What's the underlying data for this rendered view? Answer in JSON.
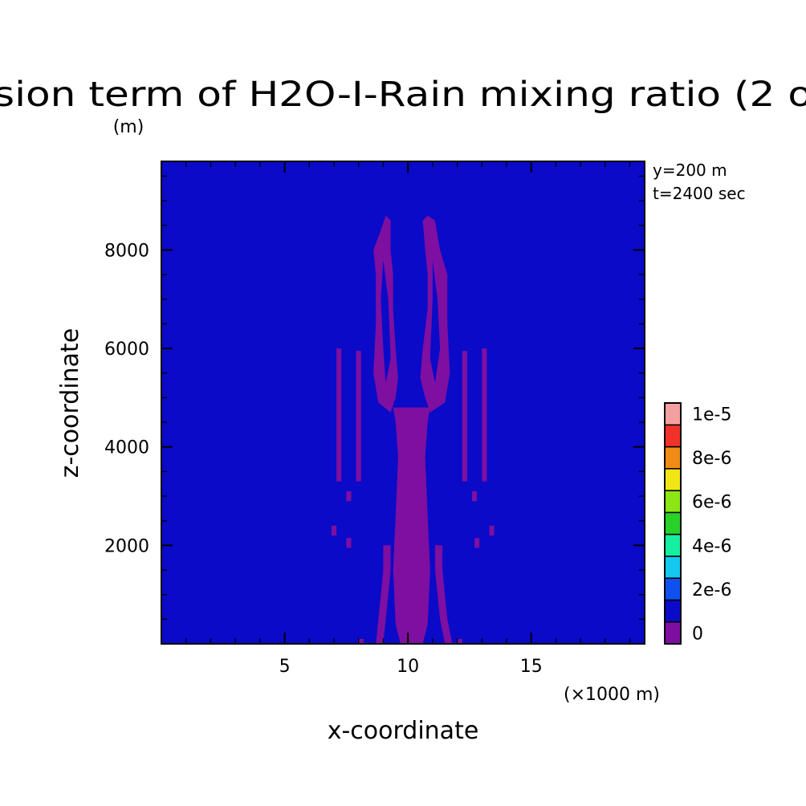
{
  "chart_data": {
    "type": "heatmap",
    "title": "sion term of H2O-I-Rain mixing ratio (2 o",
    "title_unit": "(m)",
    "xlabel": "x-coordinate",
    "ylabel": "z-coordinate",
    "x_unit": "(×1000 m)",
    "annotations": [
      "y=200 m",
      "t=2400 sec"
    ],
    "xlim": [
      0,
      19.6
    ],
    "ylim": [
      0,
      9800
    ],
    "xticks": [
      5,
      10,
      15
    ],
    "yticks": [
      2000,
      4000,
      6000,
      8000
    ],
    "grid": false,
    "colorbar": {
      "labels": [
        "0",
        "2e-6",
        "4e-6",
        "6e-6",
        "8e-6",
        "1e-5"
      ],
      "colors": [
        "#7e0fa0",
        "#0a0ac8",
        "#0f50f0",
        "#14c8f0",
        "#14f0a0",
        "#28d228",
        "#8ce614",
        "#f0e614",
        "#f08c14",
        "#f03228",
        "#f5a0a0"
      ]
    },
    "background_color": "#0a0ac8",
    "feature_color": "#7e0fa0",
    "regions": [
      {
        "name": "central-column",
        "points": [
          [
            9.7,
            0
          ],
          [
            9.5,
            400
          ],
          [
            9.4,
            1500
          ],
          [
            9.5,
            2600
          ],
          [
            9.6,
            3800
          ],
          [
            9.5,
            4500
          ],
          [
            9.4,
            4800
          ],
          [
            10.9,
            4800
          ],
          [
            10.8,
            4500
          ],
          [
            10.7,
            3800
          ],
          [
            10.8,
            2600
          ],
          [
            10.9,
            1500
          ],
          [
            10.8,
            400
          ],
          [
            10.6,
            0
          ]
        ]
      },
      {
        "name": "left-lower-branch",
        "points": [
          [
            8.7,
            0
          ],
          [
            8.8,
            500
          ],
          [
            8.9,
            1000
          ],
          [
            9.0,
            1500
          ],
          [
            9.0,
            2000
          ],
          [
            9.3,
            2000
          ],
          [
            9.3,
            1500
          ],
          [
            9.2,
            1000
          ],
          [
            9.1,
            500
          ],
          [
            9.0,
            0
          ]
        ]
      },
      {
        "name": "right-lower-branch",
        "points": [
          [
            11.5,
            0
          ],
          [
            11.3,
            500
          ],
          [
            11.2,
            1000
          ],
          [
            11.1,
            1500
          ],
          [
            11.1,
            2000
          ],
          [
            11.4,
            2000
          ],
          [
            11.4,
            1500
          ],
          [
            11.5,
            1000
          ],
          [
            11.6,
            500
          ],
          [
            11.8,
            0
          ]
        ]
      },
      {
        "name": "left-upper-ring",
        "points": [
          [
            9.1,
            8700
          ],
          [
            8.9,
            8400
          ],
          [
            8.6,
            8000
          ],
          [
            8.7,
            7500
          ],
          [
            8.7,
            6500
          ],
          [
            8.6,
            5500
          ],
          [
            8.8,
            4900
          ],
          [
            9.3,
            4700
          ],
          [
            9.5,
            5000
          ],
          [
            9.6,
            5400
          ],
          [
            9.5,
            6000
          ],
          [
            9.4,
            6800
          ],
          [
            9.4,
            7500
          ],
          [
            9.3,
            8000
          ],
          [
            9.3,
            8600
          ]
        ]
      },
      {
        "name": "right-upper-ring",
        "points": [
          [
            10.8,
            8700
          ],
          [
            11.1,
            8600
          ],
          [
            11.3,
            8000
          ],
          [
            11.6,
            7500
          ],
          [
            11.6,
            6500
          ],
          [
            11.7,
            5500
          ],
          [
            11.5,
            4900
          ],
          [
            10.9,
            4700
          ],
          [
            10.7,
            5000
          ],
          [
            10.5,
            5400
          ],
          [
            10.6,
            6000
          ],
          [
            10.8,
            6800
          ],
          [
            10.8,
            7500
          ],
          [
            10.7,
            8000
          ],
          [
            10.6,
            8600
          ]
        ]
      },
      {
        "name": "left-outer-streak",
        "points": [
          [
            7.1,
            6000
          ],
          [
            7.3,
            6000
          ],
          [
            7.3,
            3300
          ],
          [
            7.1,
            3300
          ]
        ]
      },
      {
        "name": "left-inner-streak",
        "points": [
          [
            7.9,
            5950
          ],
          [
            8.1,
            5950
          ],
          [
            8.1,
            3300
          ],
          [
            7.9,
            3300
          ]
        ]
      },
      {
        "name": "right-inner-streak",
        "points": [
          [
            12.2,
            5950
          ],
          [
            12.4,
            5950
          ],
          [
            12.4,
            3300
          ],
          [
            12.2,
            3300
          ]
        ]
      },
      {
        "name": "right-outer-streak",
        "points": [
          [
            13.0,
            6000
          ],
          [
            13.2,
            6000
          ],
          [
            13.2,
            3300
          ],
          [
            13.0,
            3300
          ]
        ]
      },
      {
        "name": "left-patch-1",
        "points": [
          [
            7.5,
            3100
          ],
          [
            7.7,
            3100
          ],
          [
            7.7,
            2900
          ],
          [
            7.5,
            2900
          ]
        ]
      },
      {
        "name": "left-patch-2",
        "points": [
          [
            6.9,
            2400
          ],
          [
            7.1,
            2400
          ],
          [
            7.1,
            2200
          ],
          [
            6.9,
            2200
          ]
        ]
      },
      {
        "name": "left-patch-3",
        "points": [
          [
            7.5,
            2150
          ],
          [
            7.7,
            2150
          ],
          [
            7.7,
            1950
          ],
          [
            7.5,
            1950
          ]
        ]
      },
      {
        "name": "right-patch-1",
        "points": [
          [
            12.6,
            3100
          ],
          [
            12.8,
            3100
          ],
          [
            12.8,
            2900
          ],
          [
            12.6,
            2900
          ]
        ]
      },
      {
        "name": "right-patch-2",
        "points": [
          [
            13.3,
            2400
          ],
          [
            13.5,
            2400
          ],
          [
            13.5,
            2200
          ],
          [
            13.3,
            2200
          ]
        ]
      },
      {
        "name": "right-patch-3",
        "points": [
          [
            12.7,
            2150
          ],
          [
            12.9,
            2150
          ],
          [
            12.9,
            1950
          ],
          [
            12.7,
            1950
          ]
        ]
      },
      {
        "name": "left-foot-patch",
        "points": [
          [
            8.0,
            100
          ],
          [
            8.2,
            100
          ],
          [
            8.2,
            0
          ],
          [
            8.0,
            0
          ]
        ]
      },
      {
        "name": "right-foot-patch",
        "points": [
          [
            12.0,
            100
          ],
          [
            12.2,
            100
          ],
          [
            12.2,
            0
          ],
          [
            12.0,
            0
          ]
        ]
      }
    ],
    "holes": [
      {
        "name": "left-ring-hole",
        "points": [
          [
            9.0,
            7800
          ],
          [
            8.9,
            7000
          ],
          [
            9.0,
            6000
          ],
          [
            9.1,
            5300
          ],
          [
            9.3,
            5800
          ],
          [
            9.2,
            7000
          ]
        ]
      },
      {
        "name": "right-ring-hole",
        "points": [
          [
            11.0,
            7800
          ],
          [
            11.2,
            7000
          ],
          [
            11.3,
            6000
          ],
          [
            11.1,
            5300
          ],
          [
            10.9,
            5800
          ],
          [
            11.0,
            7000
          ]
        ]
      }
    ]
  }
}
